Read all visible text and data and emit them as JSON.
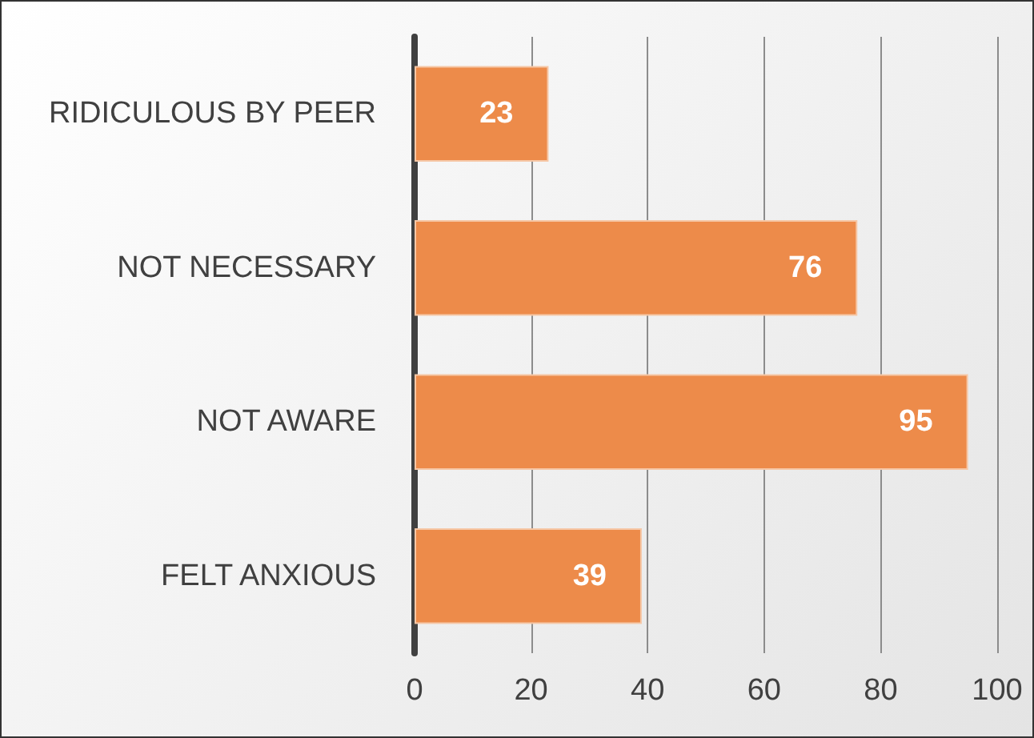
{
  "chart_data": {
    "type": "bar",
    "orientation": "horizontal",
    "categories": [
      "RIDICULOUS BY PEER",
      "NOT NECESSARY",
      "NOT AWARE",
      "FELT ANXIOUS"
    ],
    "values": [
      23,
      76,
      95,
      39
    ],
    "color": "#ed8b4a",
    "xlim": [
      0,
      100
    ],
    "xticks": [
      0,
      20,
      40,
      60,
      80,
      100
    ],
    "grid": "x",
    "data_labels": true
  }
}
